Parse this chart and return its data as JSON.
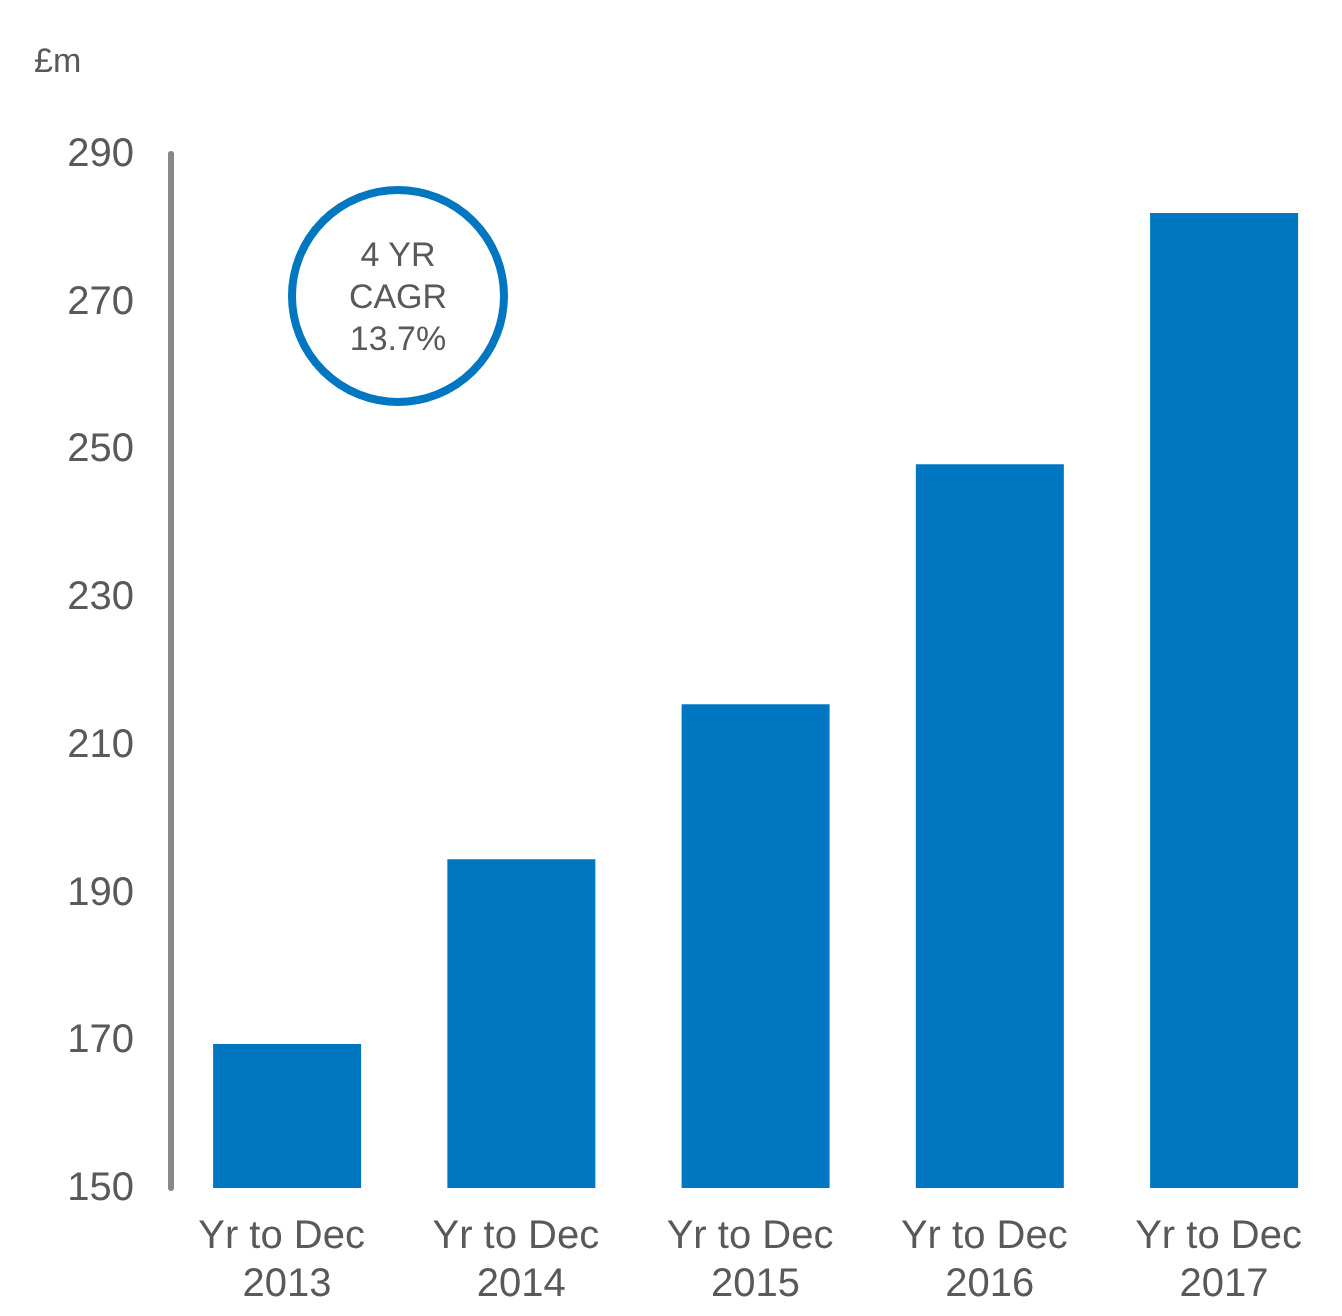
{
  "chart_data": {
    "type": "bar",
    "ylabel": "£m",
    "categories": [
      "Yr to Dec 2013",
      "Yr to Dec 2014",
      "Yr to Dec 2015",
      "Yr to Dec 2016",
      "Yr to Dec 2017"
    ],
    "values": [
      169.5,
      194.5,
      215.5,
      248,
      282
    ],
    "color": "#0077c0",
    "ylim": [
      150,
      290
    ],
    "yticks": [
      150,
      170,
      190,
      210,
      230,
      250,
      270,
      290
    ],
    "grid": false,
    "annotations": [
      "4 YR\nCAGR\n13.7%"
    ]
  }
}
